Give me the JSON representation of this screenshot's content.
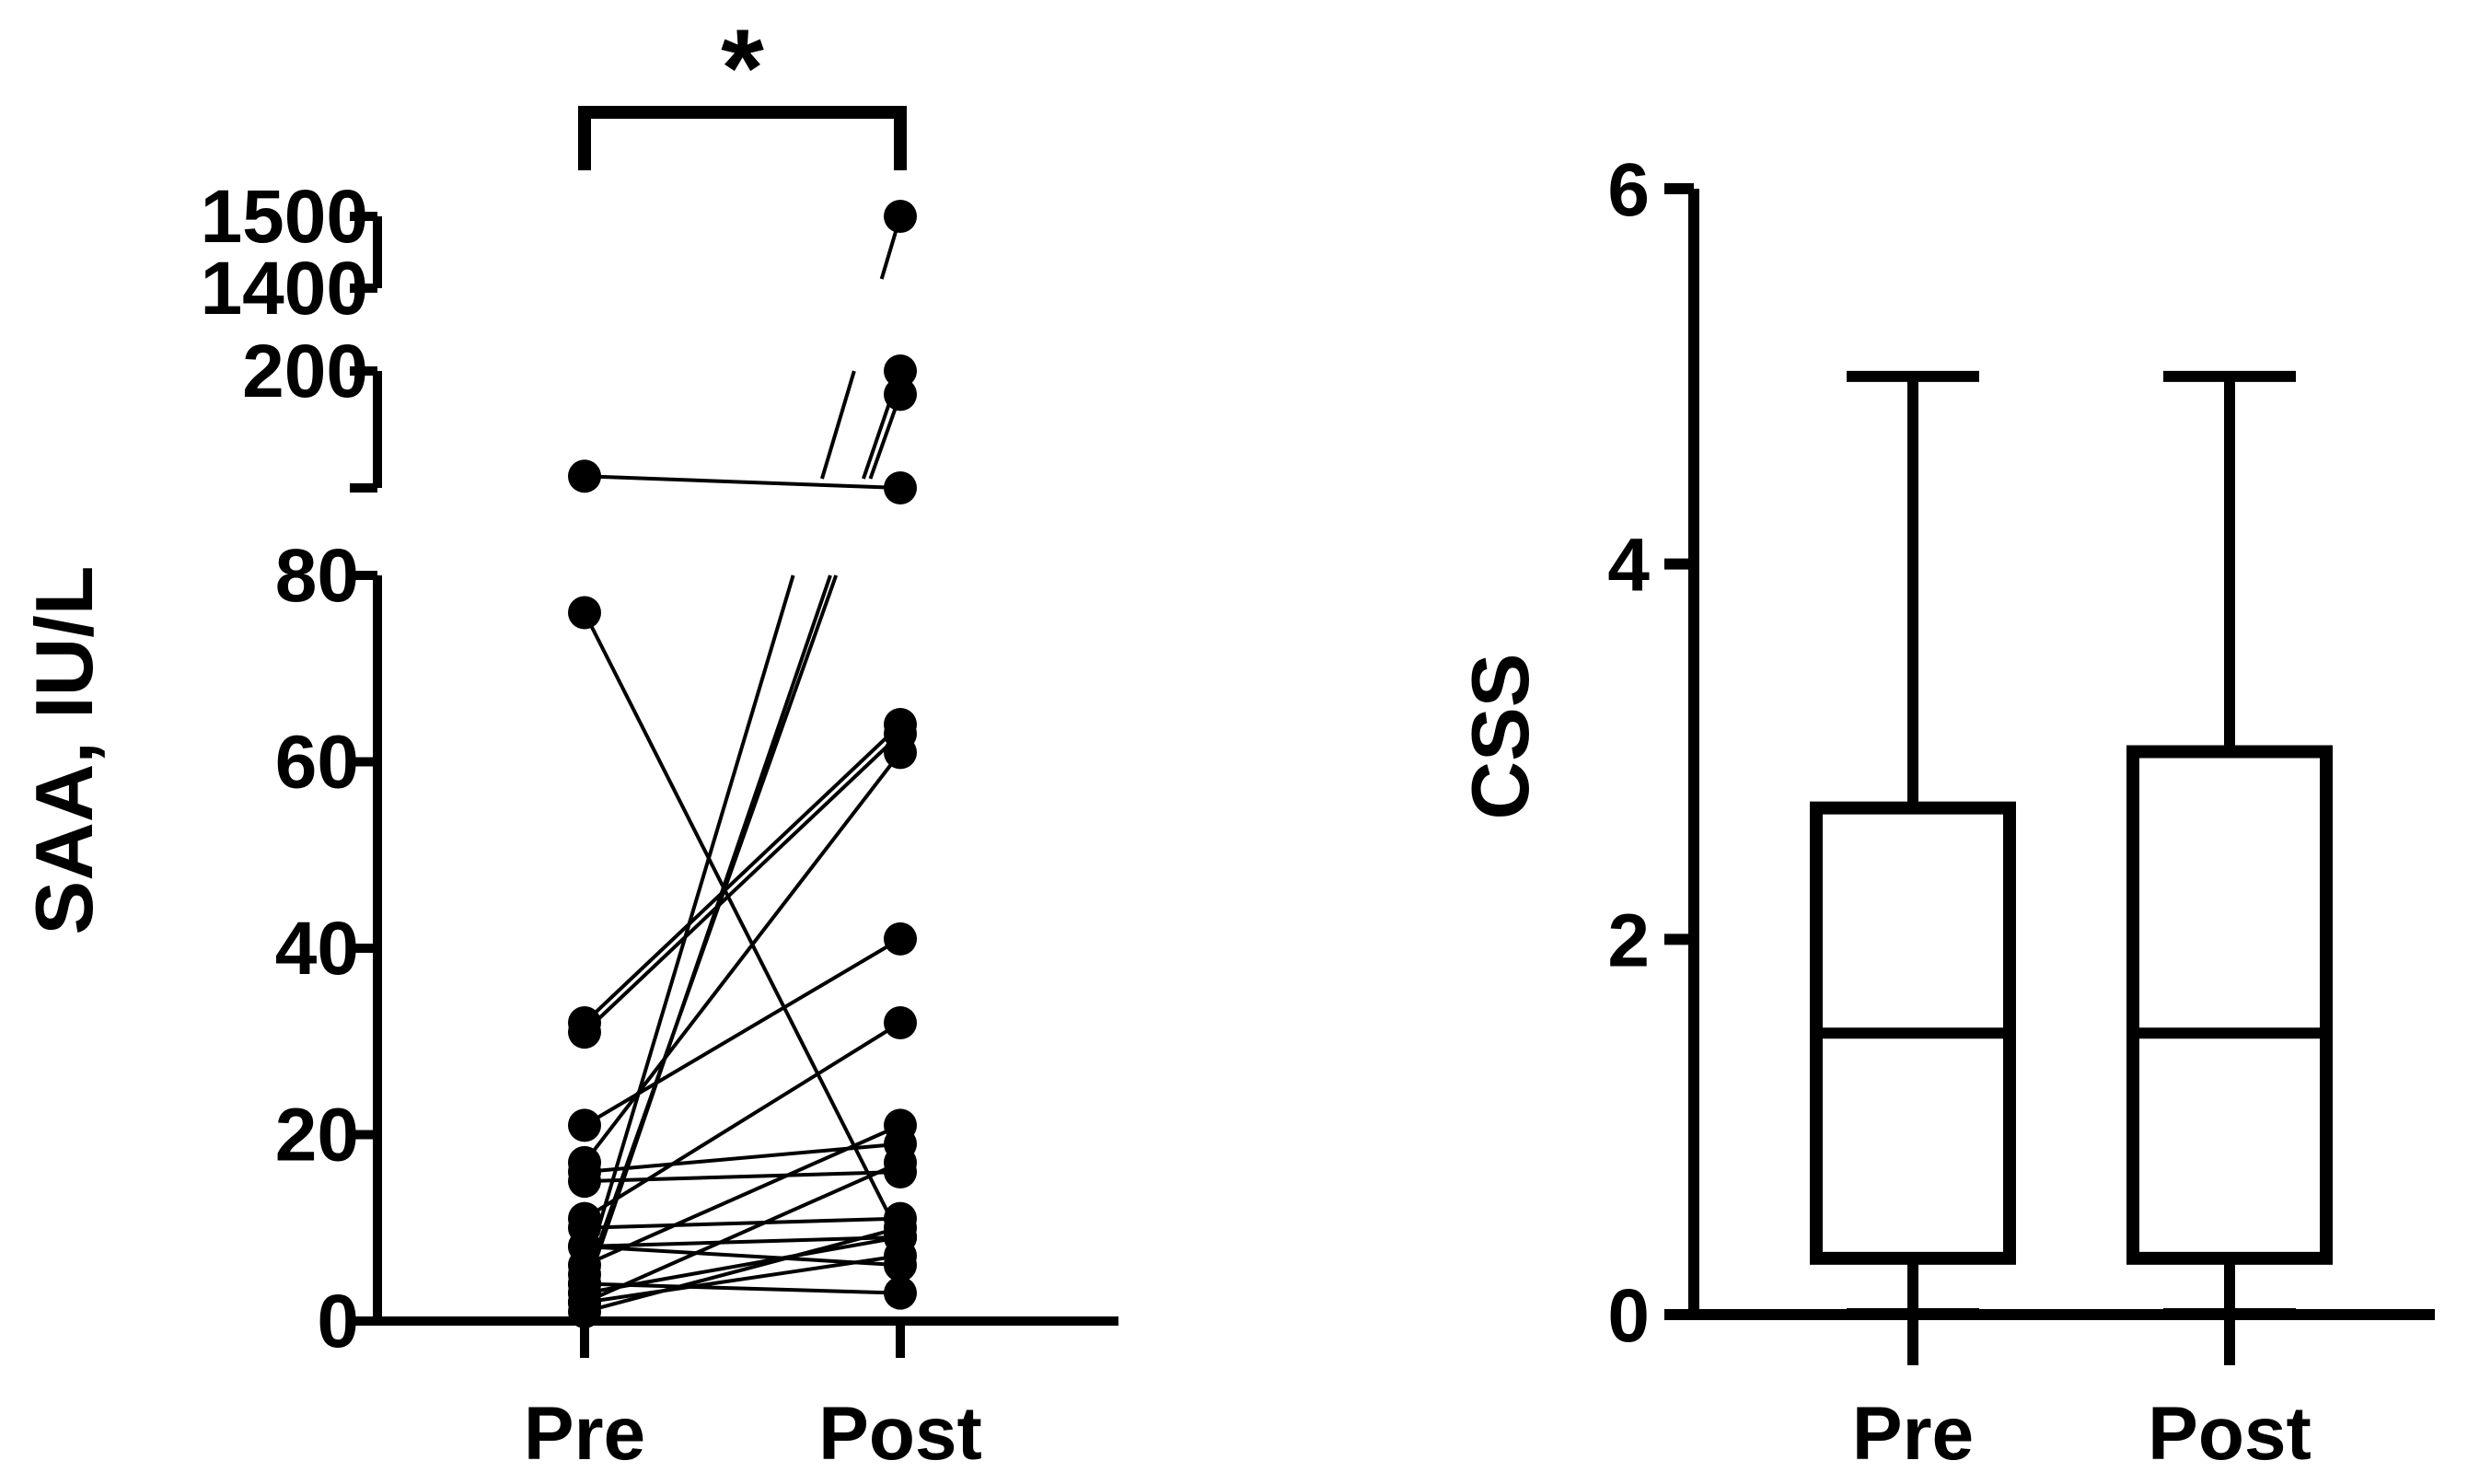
{
  "chart_data": [
    {
      "type": "line",
      "subtype": "paired-before-after",
      "ylabel": "SAA, IU/L",
      "categories": [
        "Pre",
        "Post"
      ],
      "y_axis_segments": [
        {
          "range": [
            0,
            80
          ],
          "ticks": [
            "0",
            "20",
            "40",
            "60",
            "80"
          ]
        },
        {
          "range": [
            100,
            200
          ],
          "ticks": [
            "200"
          ]
        },
        {
          "range": [
            1400,
            1500
          ],
          "ticks": [
            "1400",
            "1500"
          ]
        }
      ],
      "significance": "*",
      "pairs": [
        {
          "pre": 110,
          "post": 100
        },
        {
          "pre": 76,
          "post": 9
        },
        {
          "pre": 32,
          "post": 64
        },
        {
          "pre": 31,
          "post": 63
        },
        {
          "pre": 21,
          "post": 41
        },
        {
          "pre": 17,
          "post": 61
        },
        {
          "pre": 16,
          "post": 19
        },
        {
          "pre": 15,
          "post": 16
        },
        {
          "pre": 11,
          "post": 32
        },
        {
          "pre": 10,
          "post": 11
        },
        {
          "pre": 8,
          "post": 9
        },
        {
          "pre": 8,
          "post": 6
        },
        {
          "pre": 6,
          "post": 21
        },
        {
          "pre": 5,
          "post": 1500
        },
        {
          "pre": 4,
          "post": 180
        },
        {
          "pre": 4,
          "post": 3
        },
        {
          "pre": 3,
          "post": 200
        },
        {
          "pre": 3,
          "post": 9
        },
        {
          "pre": 2,
          "post": 7
        },
        {
          "pre": 2,
          "post": 17
        },
        {
          "pre": 1,
          "post": 10
        }
      ]
    },
    {
      "type": "box",
      "ylabel": "CSS",
      "categories": [
        "Pre",
        "Post"
      ],
      "ylim": [
        0,
        6
      ],
      "yticks": [
        "0",
        "2",
        "4",
        "6"
      ],
      "boxes": [
        {
          "category": "Pre",
          "min": 0,
          "q1": 0.3,
          "median": 1.5,
          "q3": 2.7,
          "max": 5
        },
        {
          "category": "Post",
          "min": 0,
          "q1": 0.3,
          "median": 1.5,
          "q3": 3.0,
          "max": 5
        }
      ]
    }
  ]
}
